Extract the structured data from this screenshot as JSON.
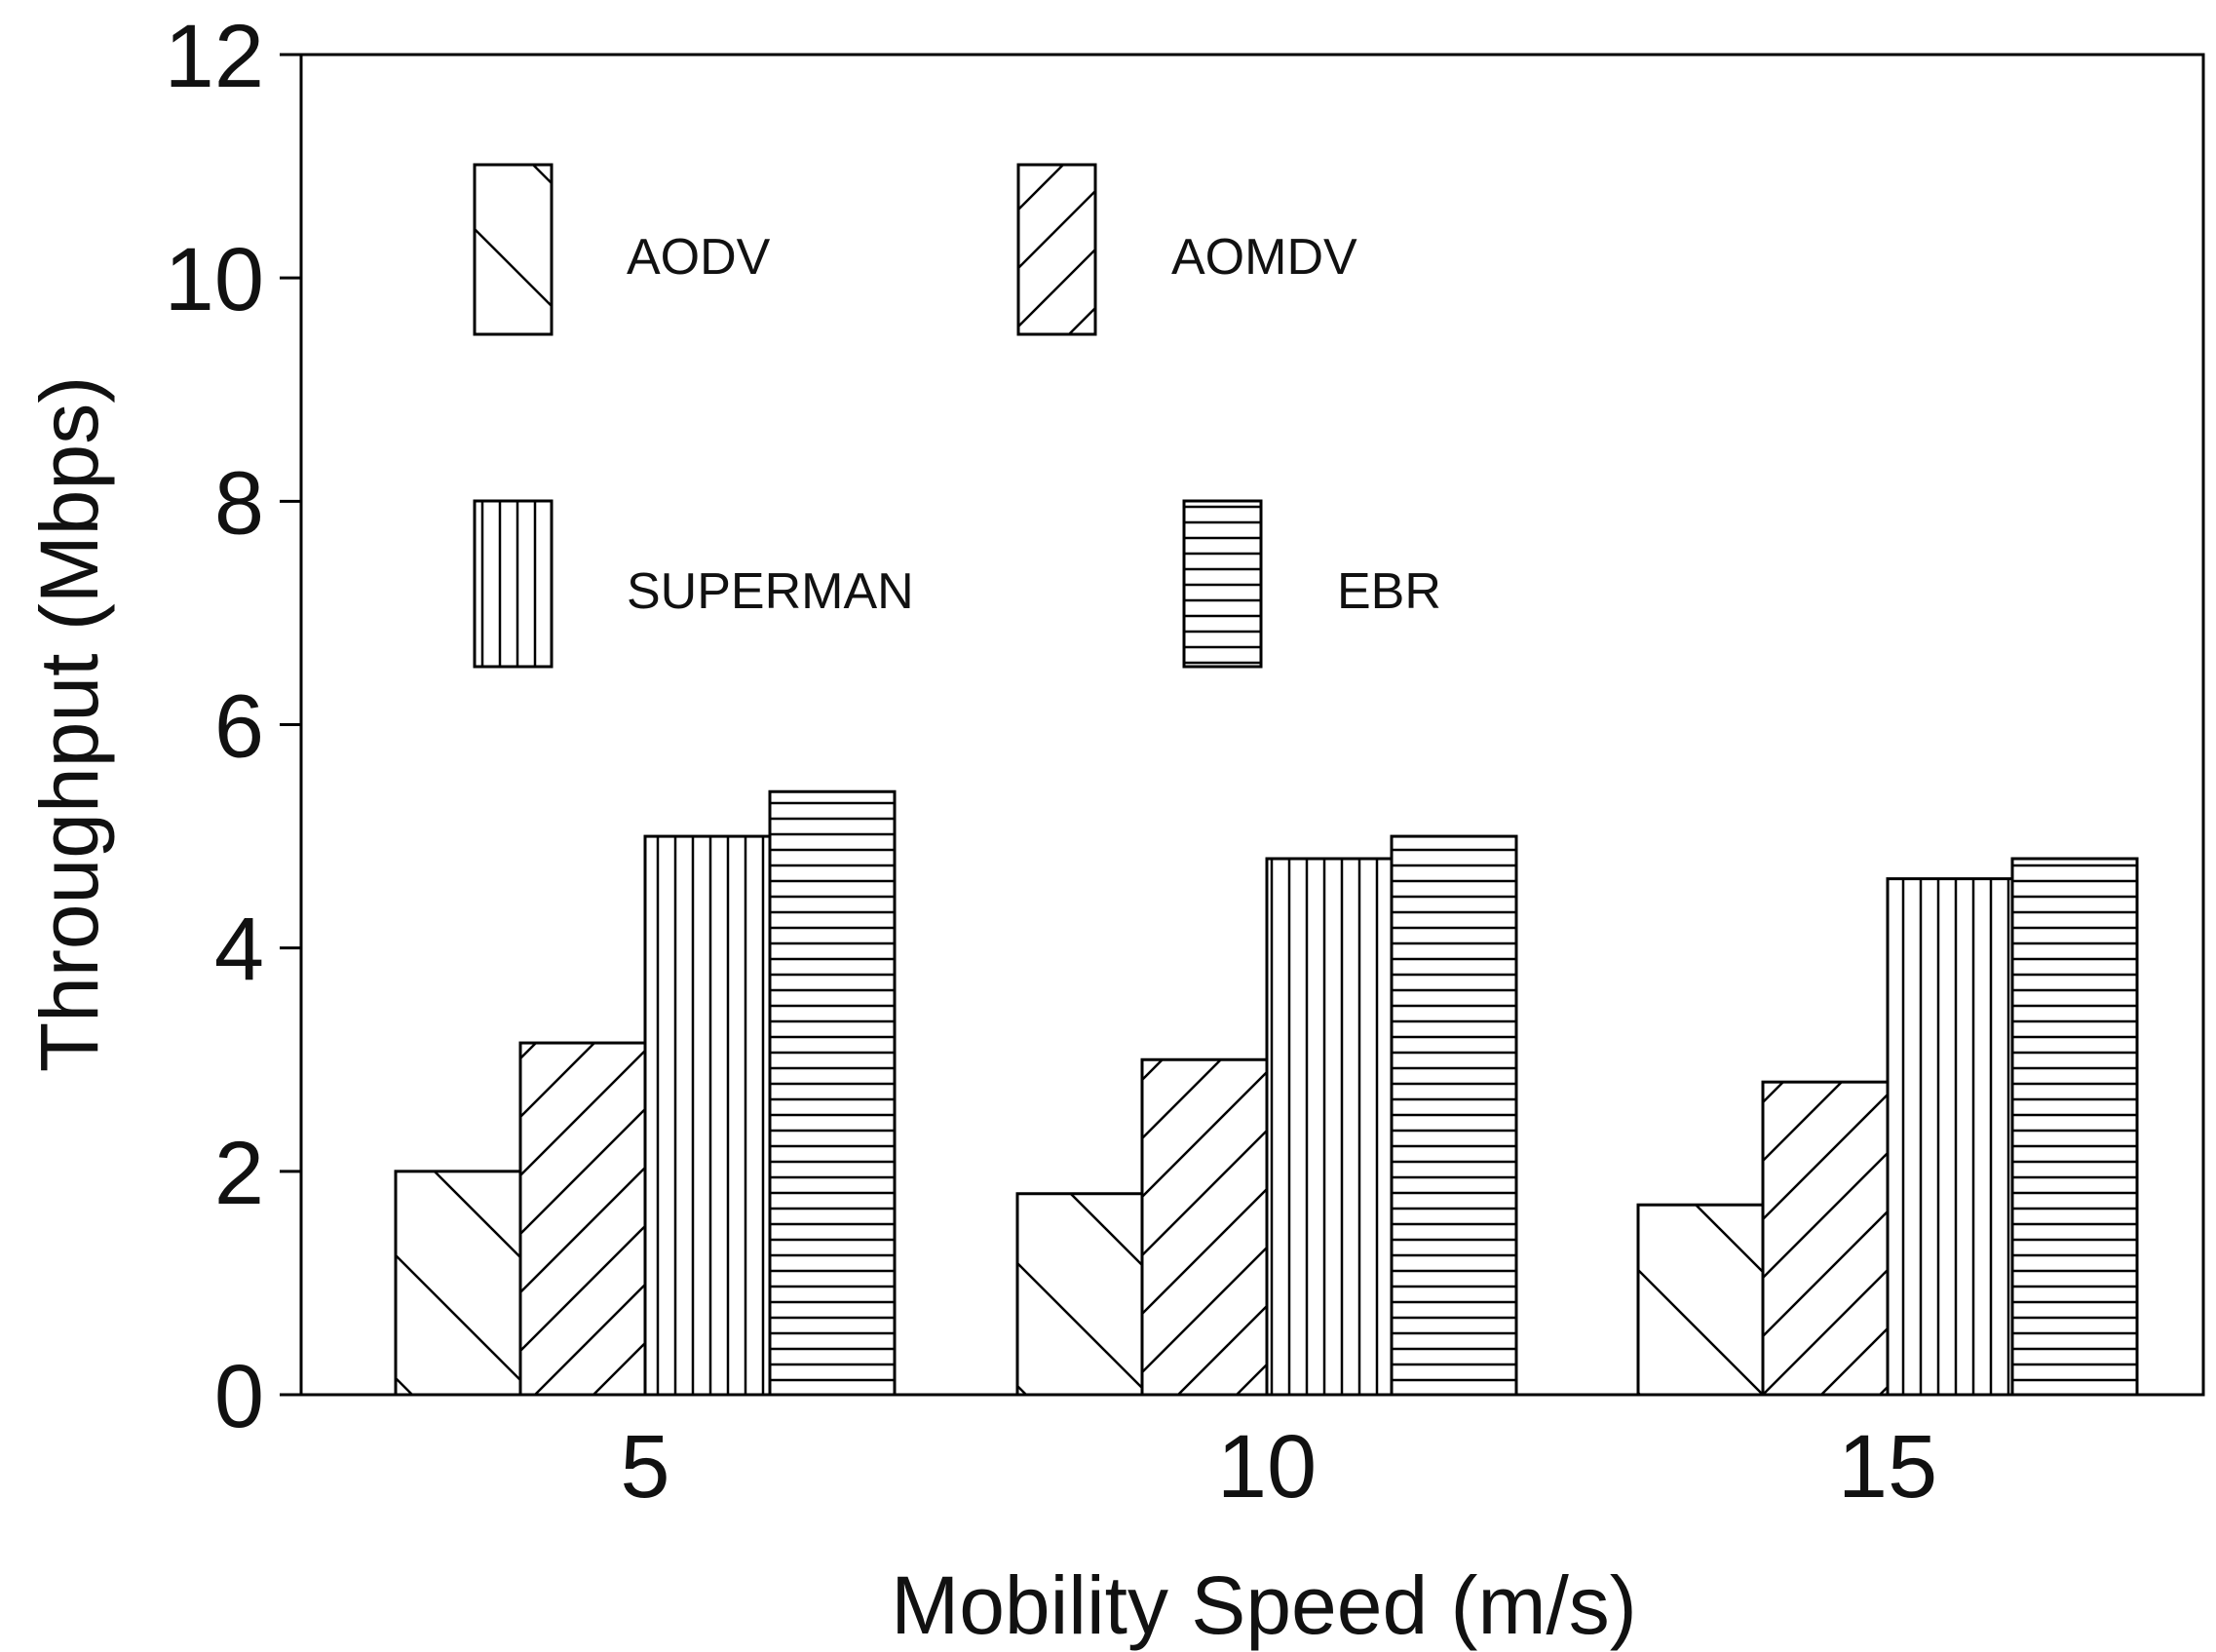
{
  "chart_data": {
    "type": "bar",
    "title": "",
    "xlabel": "Mobility Speed (m/s)",
    "ylabel": "Throughput (Mbps)",
    "categories": [
      "5",
      "10",
      "15"
    ],
    "ylim": [
      0,
      12
    ],
    "yticks": [
      "0",
      "2",
      "4",
      "6",
      "8",
      "10",
      "12"
    ],
    "grid": false,
    "legend_position": "top-left, inside plot",
    "series": [
      {
        "name": "AODV",
        "pattern": "backslash-hatch",
        "values": [
          2.0,
          1.8,
          1.7
        ]
      },
      {
        "name": "AOMDV",
        "pattern": "forward-slash-hatch",
        "values": [
          3.15,
          3.0,
          2.8
        ]
      },
      {
        "name": "SUPERMAN",
        "pattern": "vertical-lines",
        "values": [
          5.0,
          4.8,
          4.62
        ]
      },
      {
        "name": "EBR",
        "pattern": "horizontal-lines",
        "values": [
          5.4,
          5.0,
          4.8
        ]
      }
    ],
    "colors": {
      "bar_fill": "#ffffff",
      "bar_stroke": "#000000",
      "text": "#111111"
    }
  }
}
